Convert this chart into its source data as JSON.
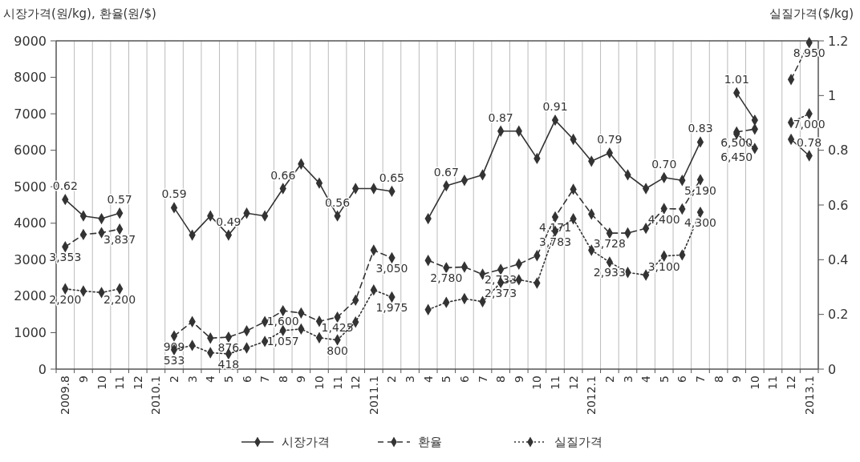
{
  "chart_data": {
    "type": "line",
    "ylabel": "시장가격(원/kg), 환율(원/$)",
    "y2label": "실질가격($/kg)",
    "categories": [
      "2009.8",
      "9",
      "10",
      "11",
      "12",
      "2010.1",
      "2",
      "3",
      "4",
      "5",
      "6",
      "7",
      "8",
      "9",
      "10",
      "11",
      "12",
      "2011.1",
      "2",
      "3",
      "4",
      "5",
      "6",
      "7",
      "8",
      "9",
      "10",
      "11",
      "12",
      "2012.1",
      "2",
      "3",
      "4",
      "5",
      "6",
      "7",
      "8",
      "9",
      "10",
      "11",
      "12",
      "2013.1"
    ],
    "ylim": [
      0,
      9000
    ],
    "yticks": [
      0,
      1000,
      2000,
      3000,
      4000,
      5000,
      6000,
      7000,
      8000,
      9000
    ],
    "y2lim": [
      0,
      1.2
    ],
    "y2ticks": [
      0,
      0.2,
      0.4,
      0.6,
      0.8,
      1,
      1.2
    ],
    "grid": "x",
    "legend": "bottom",
    "marker": "diamond",
    "series": [
      {
        "name": "시장가격",
        "color": "#333333",
        "axis": "y2",
        "line_style": "solid",
        "values": [
          0.62,
          0.56,
          0.55,
          0.57,
          null,
          null,
          0.59,
          0.49,
          0.56,
          0.49,
          0.57,
          0.56,
          0.66,
          0.75,
          0.68,
          0.56,
          0.66,
          0.66,
          0.65,
          null,
          0.55,
          0.67,
          0.69,
          0.71,
          0.87,
          0.87,
          0.77,
          0.91,
          0.84,
          0.76,
          0.79,
          0.71,
          0.66,
          0.7,
          0.69,
          0.83,
          null,
          1.01,
          0.91,
          null,
          0.84,
          0.78
        ],
        "value_labels": [
          "0.62",
          null,
          null,
          "0.57",
          null,
          null,
          "0.59",
          null,
          null,
          "0.49",
          null,
          null,
          "0.66",
          null,
          null,
          "0.56",
          null,
          null,
          "0.65",
          null,
          null,
          "0.67",
          null,
          null,
          "0.87",
          null,
          null,
          "0.91",
          null,
          null,
          "0.79",
          null,
          null,
          "0.70",
          null,
          "0.83",
          null,
          "1.01",
          null,
          null,
          null,
          "0.78"
        ]
      },
      {
        "name": "환율",
        "color": "#333333",
        "line_style": "dashed",
        "values": [
          3353,
          3690,
          3740,
          3837,
          null,
          null,
          909,
          1300,
          850,
          876,
          1050,
          1300,
          1600,
          1540,
          1310,
          1425,
          1890,
          3260,
          3050,
          null,
          2980,
          2780,
          2800,
          2600,
          2733,
          2880,
          3110,
          4171,
          4930,
          4250,
          3728,
          3730,
          3860,
          4400,
          4390,
          5190,
          null,
          6500,
          6580,
          null,
          7940,
          8950
        ],
        "value_labels": [
          "3,353",
          null,
          null,
          "3,837",
          null,
          null,
          "909",
          null,
          null,
          "876",
          null,
          null,
          "1,600",
          null,
          null,
          "1,425",
          null,
          null,
          "3,050",
          null,
          null,
          "2,780",
          null,
          null,
          "2,733",
          null,
          null,
          "4,171",
          null,
          null,
          "3,728",
          null,
          null,
          "4,400",
          null,
          "5,190",
          null,
          "6,500",
          null,
          null,
          null,
          "8,950"
        ]
      },
      {
        "name": "실질가격",
        "color": "#333333",
        "line_style": "dotted",
        "values": [
          2200,
          2140,
          2100,
          2200,
          null,
          null,
          533,
          650,
          450,
          418,
          580,
          760,
          1057,
          1100,
          860,
          800,
          1290,
          2170,
          1975,
          null,
          1630,
          1830,
          1930,
          1850,
          2373,
          2450,
          2360,
          3783,
          4120,
          3260,
          2933,
          2650,
          2580,
          3100,
          3130,
          4300,
          null,
          6450,
          6050,
          null,
          6760,
          7000
        ],
        "value_labels": [
          "2,200",
          null,
          null,
          "2,200",
          null,
          null,
          "533",
          null,
          null,
          "418",
          null,
          null,
          "1,057",
          null,
          null,
          "800",
          null,
          null,
          "1,975",
          null,
          null,
          null,
          null,
          null,
          "2,373",
          null,
          null,
          "3,783",
          null,
          null,
          "2,933",
          null,
          null,
          "3,100",
          null,
          "4,300",
          null,
          "6,450",
          null,
          null,
          null,
          "7,000"
        ]
      }
    ]
  }
}
